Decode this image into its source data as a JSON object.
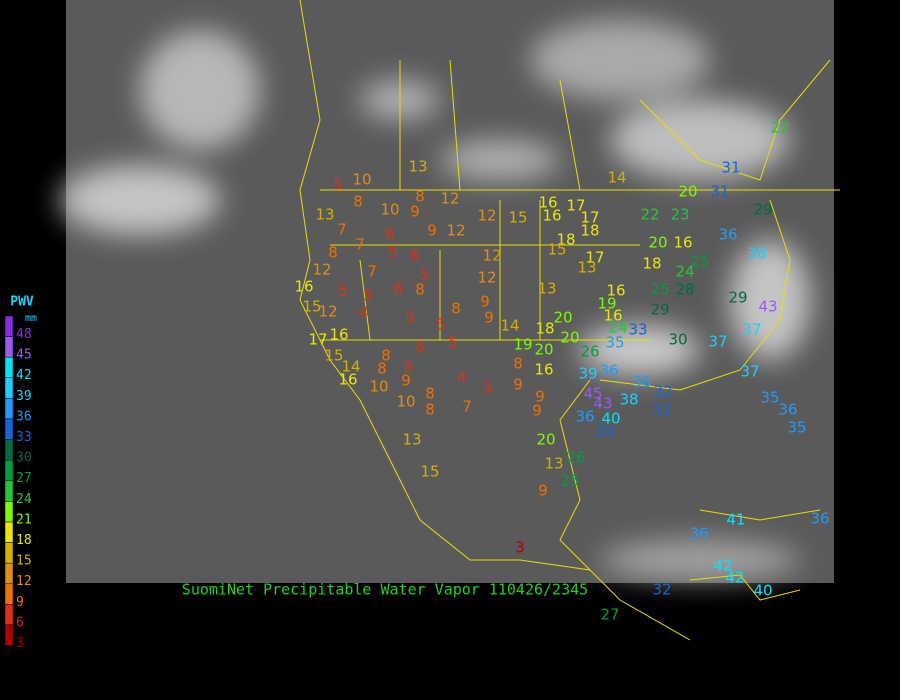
{
  "title": "SuomiNet Precipitable Water Vapor 110426/2345",
  "legend": {
    "title": "PWV",
    "unit": "mm",
    "levels": [
      {
        "value": 48,
        "color": "#8a2be2"
      },
      {
        "value": 45,
        "color": "#9b59f0"
      },
      {
        "value": 42,
        "color": "#00e5ff"
      },
      {
        "value": 39,
        "color": "#1ad1ff"
      },
      {
        "value": 36,
        "color": "#1e9bff"
      },
      {
        "value": 33,
        "color": "#1565d8"
      },
      {
        "value": 30,
        "color": "#006b40"
      },
      {
        "value": 27,
        "color": "#00a040"
      },
      {
        "value": 24,
        "color": "#22c83c"
      },
      {
        "value": 21,
        "color": "#7cfc00"
      },
      {
        "value": 18,
        "color": "#e8e800"
      },
      {
        "value": 15,
        "color": "#d4b000"
      },
      {
        "value": 12,
        "color": "#e09010"
      },
      {
        "value": 9,
        "color": "#f07000"
      },
      {
        "value": 6,
        "color": "#e03010"
      },
      {
        "value": 3,
        "color": "#b00000"
      }
    ]
  },
  "stations": [
    13,
    14,
    31,
    31,
    22,
    10,
    5,
    8,
    8,
    12,
    13,
    10,
    9,
    7,
    6,
    9,
    12,
    12,
    15,
    16,
    17,
    16,
    17,
    18,
    18,
    20,
    36,
    38,
    7,
    8,
    5,
    6,
    12,
    15,
    17,
    20,
    16,
    12,
    7,
    5,
    12,
    13,
    18,
    24,
    25,
    16,
    5,
    5,
    6,
    8,
    13,
    16,
    25,
    28,
    29,
    15,
    12,
    4,
    8,
    9,
    19,
    29,
    43,
    5,
    5,
    9,
    14,
    18,
    20,
    16,
    24,
    33,
    16,
    17,
    20,
    35,
    30,
    37,
    37,
    8,
    5,
    6,
    15,
    19,
    20,
    26,
    14,
    8,
    5,
    8,
    16,
    36,
    39,
    37,
    16,
    10,
    9,
    4,
    5,
    9,
    36,
    32,
    45,
    43,
    38,
    8,
    10,
    9,
    7,
    8,
    9,
    36,
    40,
    33,
    13,
    20,
    32,
    35,
    36,
    35,
    15,
    13,
    26,
    25,
    9,
    3,
    36,
    41,
    36,
    42,
    42,
    32,
    40,
    27,
    22,
    23,
    29
  ]
}
